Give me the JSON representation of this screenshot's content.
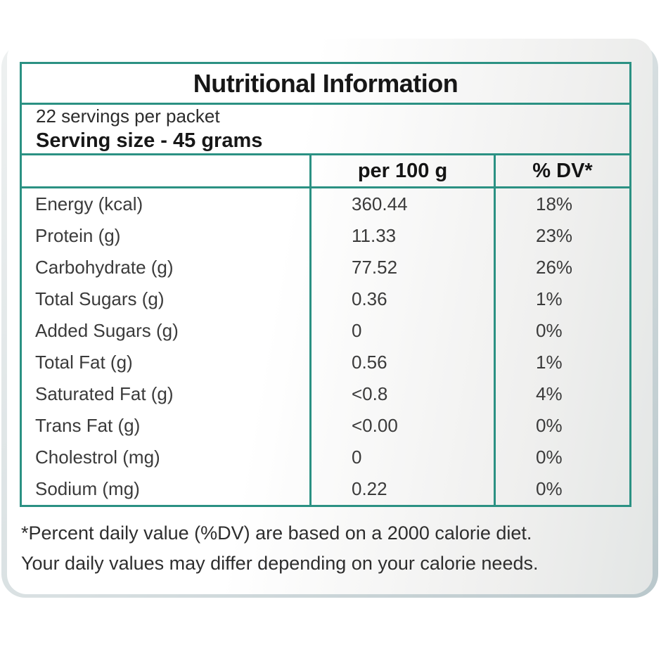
{
  "title": "Nutritional Information",
  "serving_info": {
    "servings_per_packet": "22 servings per packet",
    "serving_size": "Serving size - 45 grams"
  },
  "table": {
    "columns": [
      "",
      "per 100 g",
      "% DV*"
    ],
    "rows": [
      {
        "label": "Energy (kcal)",
        "per100g": "360.44",
        "dv": "18%"
      },
      {
        "label": "Protein (g)",
        "per100g": "11.33",
        "dv": "23%"
      },
      {
        "label": "Carbohydrate (g)",
        "per100g": "77.52",
        "dv": "26%"
      },
      {
        "label": "Total Sugars (g)",
        "per100g": "0.36",
        "dv": "1%"
      },
      {
        "label": "Added Sugars (g)",
        "per100g": "0",
        "dv": "0%"
      },
      {
        "label": "Total Fat (g)",
        "per100g": "0.56",
        "dv": "1%"
      },
      {
        "label": "Saturated Fat (g)",
        "per100g": "<0.8",
        "dv": "4%"
      },
      {
        "label": "Trans Fat (g)",
        "per100g": "<0.00",
        "dv": "0%"
      },
      {
        "label": "Cholestrol (mg)",
        "per100g": "0",
        "dv": "0%"
      },
      {
        "label": "Sodium (mg)",
        "per100g": "0.22",
        "dv": "0%"
      }
    ]
  },
  "footnote": {
    "line1": "*Percent daily value (%DV) are based on a 2000 calorie diet.",
    "line2": "Your daily values may differ depending on your calorie needs."
  },
  "colors": {
    "border_teal": "#2b9183",
    "title_text": "#171717",
    "body_text": "#3b3b3b",
    "card_gradient_end": "#e3e6e5",
    "shadow_band": "#b9c7cb"
  }
}
